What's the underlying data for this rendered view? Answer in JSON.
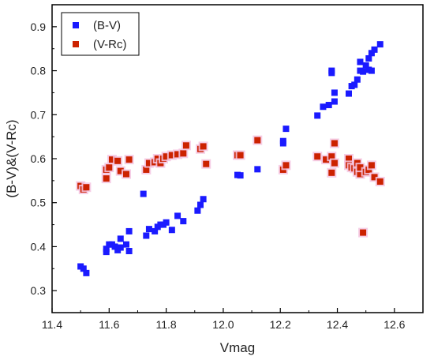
{
  "chart_data": {
    "type": "scatter",
    "xlabel": "Vmag",
    "ylabel": "(B-V)&(V-Rc)",
    "xlim": [
      11.4,
      12.7
    ],
    "ylim": [
      0.25,
      0.95
    ],
    "x_ticks": [
      "11.4",
      "11.6",
      "11.8",
      "12.0",
      "12.2",
      "12.4",
      "12.6"
    ],
    "y_ticks": [
      "0.3",
      "0.4",
      "0.5",
      "0.6",
      "0.7",
      "0.8",
      "0.9"
    ],
    "x_tick_values": [
      11.4,
      11.6,
      11.8,
      12.0,
      12.2,
      12.4,
      12.6
    ],
    "y_tick_values": [
      0.3,
      0.4,
      0.5,
      0.6,
      0.7,
      0.8,
      0.9
    ],
    "grid": false,
    "legend_position": "top-left",
    "series": [
      {
        "name": "(B-V)",
        "color": "#1a1aff",
        "marker": "square",
        "points": [
          [
            11.5,
            0.355
          ],
          [
            11.51,
            0.35
          ],
          [
            11.52,
            0.34
          ],
          [
            11.59,
            0.395
          ],
          [
            11.59,
            0.388
          ],
          [
            11.6,
            0.405
          ],
          [
            11.61,
            0.405
          ],
          [
            11.62,
            0.4
          ],
          [
            11.63,
            0.392
          ],
          [
            11.64,
            0.398
          ],
          [
            11.64,
            0.418
          ],
          [
            11.66,
            0.405
          ],
          [
            11.67,
            0.435
          ],
          [
            11.67,
            0.39
          ],
          [
            11.72,
            0.52
          ],
          [
            11.73,
            0.425
          ],
          [
            11.74,
            0.44
          ],
          [
            11.76,
            0.435
          ],
          [
            11.77,
            0.445
          ],
          [
            11.78,
            0.45
          ],
          [
            11.79,
            0.45
          ],
          [
            11.8,
            0.455
          ],
          [
            11.82,
            0.438
          ],
          [
            11.84,
            0.47
          ],
          [
            11.86,
            0.458
          ],
          [
            11.91,
            0.482
          ],
          [
            11.92,
            0.495
          ],
          [
            11.93,
            0.508
          ],
          [
            12.05,
            0.563
          ],
          [
            12.06,
            0.562
          ],
          [
            12.12,
            0.576
          ],
          [
            12.21,
            0.635
          ],
          [
            12.21,
            0.64
          ],
          [
            12.22,
            0.668
          ],
          [
            12.33,
            0.698
          ],
          [
            12.35,
            0.718
          ],
          [
            12.37,
            0.722
          ],
          [
            12.38,
            0.8
          ],
          [
            12.38,
            0.795
          ],
          [
            12.39,
            0.75
          ],
          [
            12.39,
            0.73
          ],
          [
            12.44,
            0.748
          ],
          [
            12.45,
            0.765
          ],
          [
            12.46,
            0.768
          ],
          [
            12.47,
            0.78
          ],
          [
            12.48,
            0.8
          ],
          [
            12.48,
            0.82
          ],
          [
            12.49,
            0.798
          ],
          [
            12.5,
            0.812
          ],
          [
            12.51,
            0.802
          ],
          [
            12.51,
            0.828
          ],
          [
            12.52,
            0.8
          ],
          [
            12.52,
            0.84
          ],
          [
            12.53,
            0.848
          ],
          [
            12.55,
            0.86
          ]
        ]
      },
      {
        "name": "(V-Rc)",
        "color": "#cc2200",
        "marker": "square",
        "points": [
          [
            11.5,
            0.538
          ],
          [
            11.51,
            0.53
          ],
          [
            11.52,
            0.535
          ],
          [
            11.59,
            0.575
          ],
          [
            11.59,
            0.555
          ],
          [
            11.6,
            0.58
          ],
          [
            11.61,
            0.598
          ],
          [
            11.63,
            0.595
          ],
          [
            11.64,
            0.572
          ],
          [
            11.66,
            0.565
          ],
          [
            11.67,
            0.598
          ],
          [
            11.73,
            0.575
          ],
          [
            11.74,
            0.59
          ],
          [
            11.76,
            0.592
          ],
          [
            11.77,
            0.6
          ],
          [
            11.78,
            0.59
          ],
          [
            11.79,
            0.6
          ],
          [
            11.8,
            0.605
          ],
          [
            11.82,
            0.608
          ],
          [
            11.84,
            0.61
          ],
          [
            11.86,
            0.612
          ],
          [
            11.87,
            0.63
          ],
          [
            11.92,
            0.622
          ],
          [
            11.93,
            0.628
          ],
          [
            11.94,
            0.588
          ],
          [
            12.05,
            0.608
          ],
          [
            12.06,
            0.608
          ],
          [
            12.12,
            0.642
          ],
          [
            12.21,
            0.575
          ],
          [
            12.22,
            0.585
          ],
          [
            12.33,
            0.605
          ],
          [
            12.36,
            0.598
          ],
          [
            12.38,
            0.568
          ],
          [
            12.38,
            0.605
          ],
          [
            12.39,
            0.59
          ],
          [
            12.39,
            0.635
          ],
          [
            12.44,
            0.6
          ],
          [
            12.44,
            0.585
          ],
          [
            12.45,
            0.58
          ],
          [
            12.46,
            0.578
          ],
          [
            12.47,
            0.57
          ],
          [
            12.47,
            0.59
          ],
          [
            12.48,
            0.565
          ],
          [
            12.48,
            0.58
          ],
          [
            12.49,
            0.432
          ],
          [
            12.5,
            0.57
          ],
          [
            12.51,
            0.575
          ],
          [
            12.52,
            0.585
          ],
          [
            12.53,
            0.558
          ],
          [
            12.55,
            0.548
          ]
        ]
      }
    ]
  }
}
